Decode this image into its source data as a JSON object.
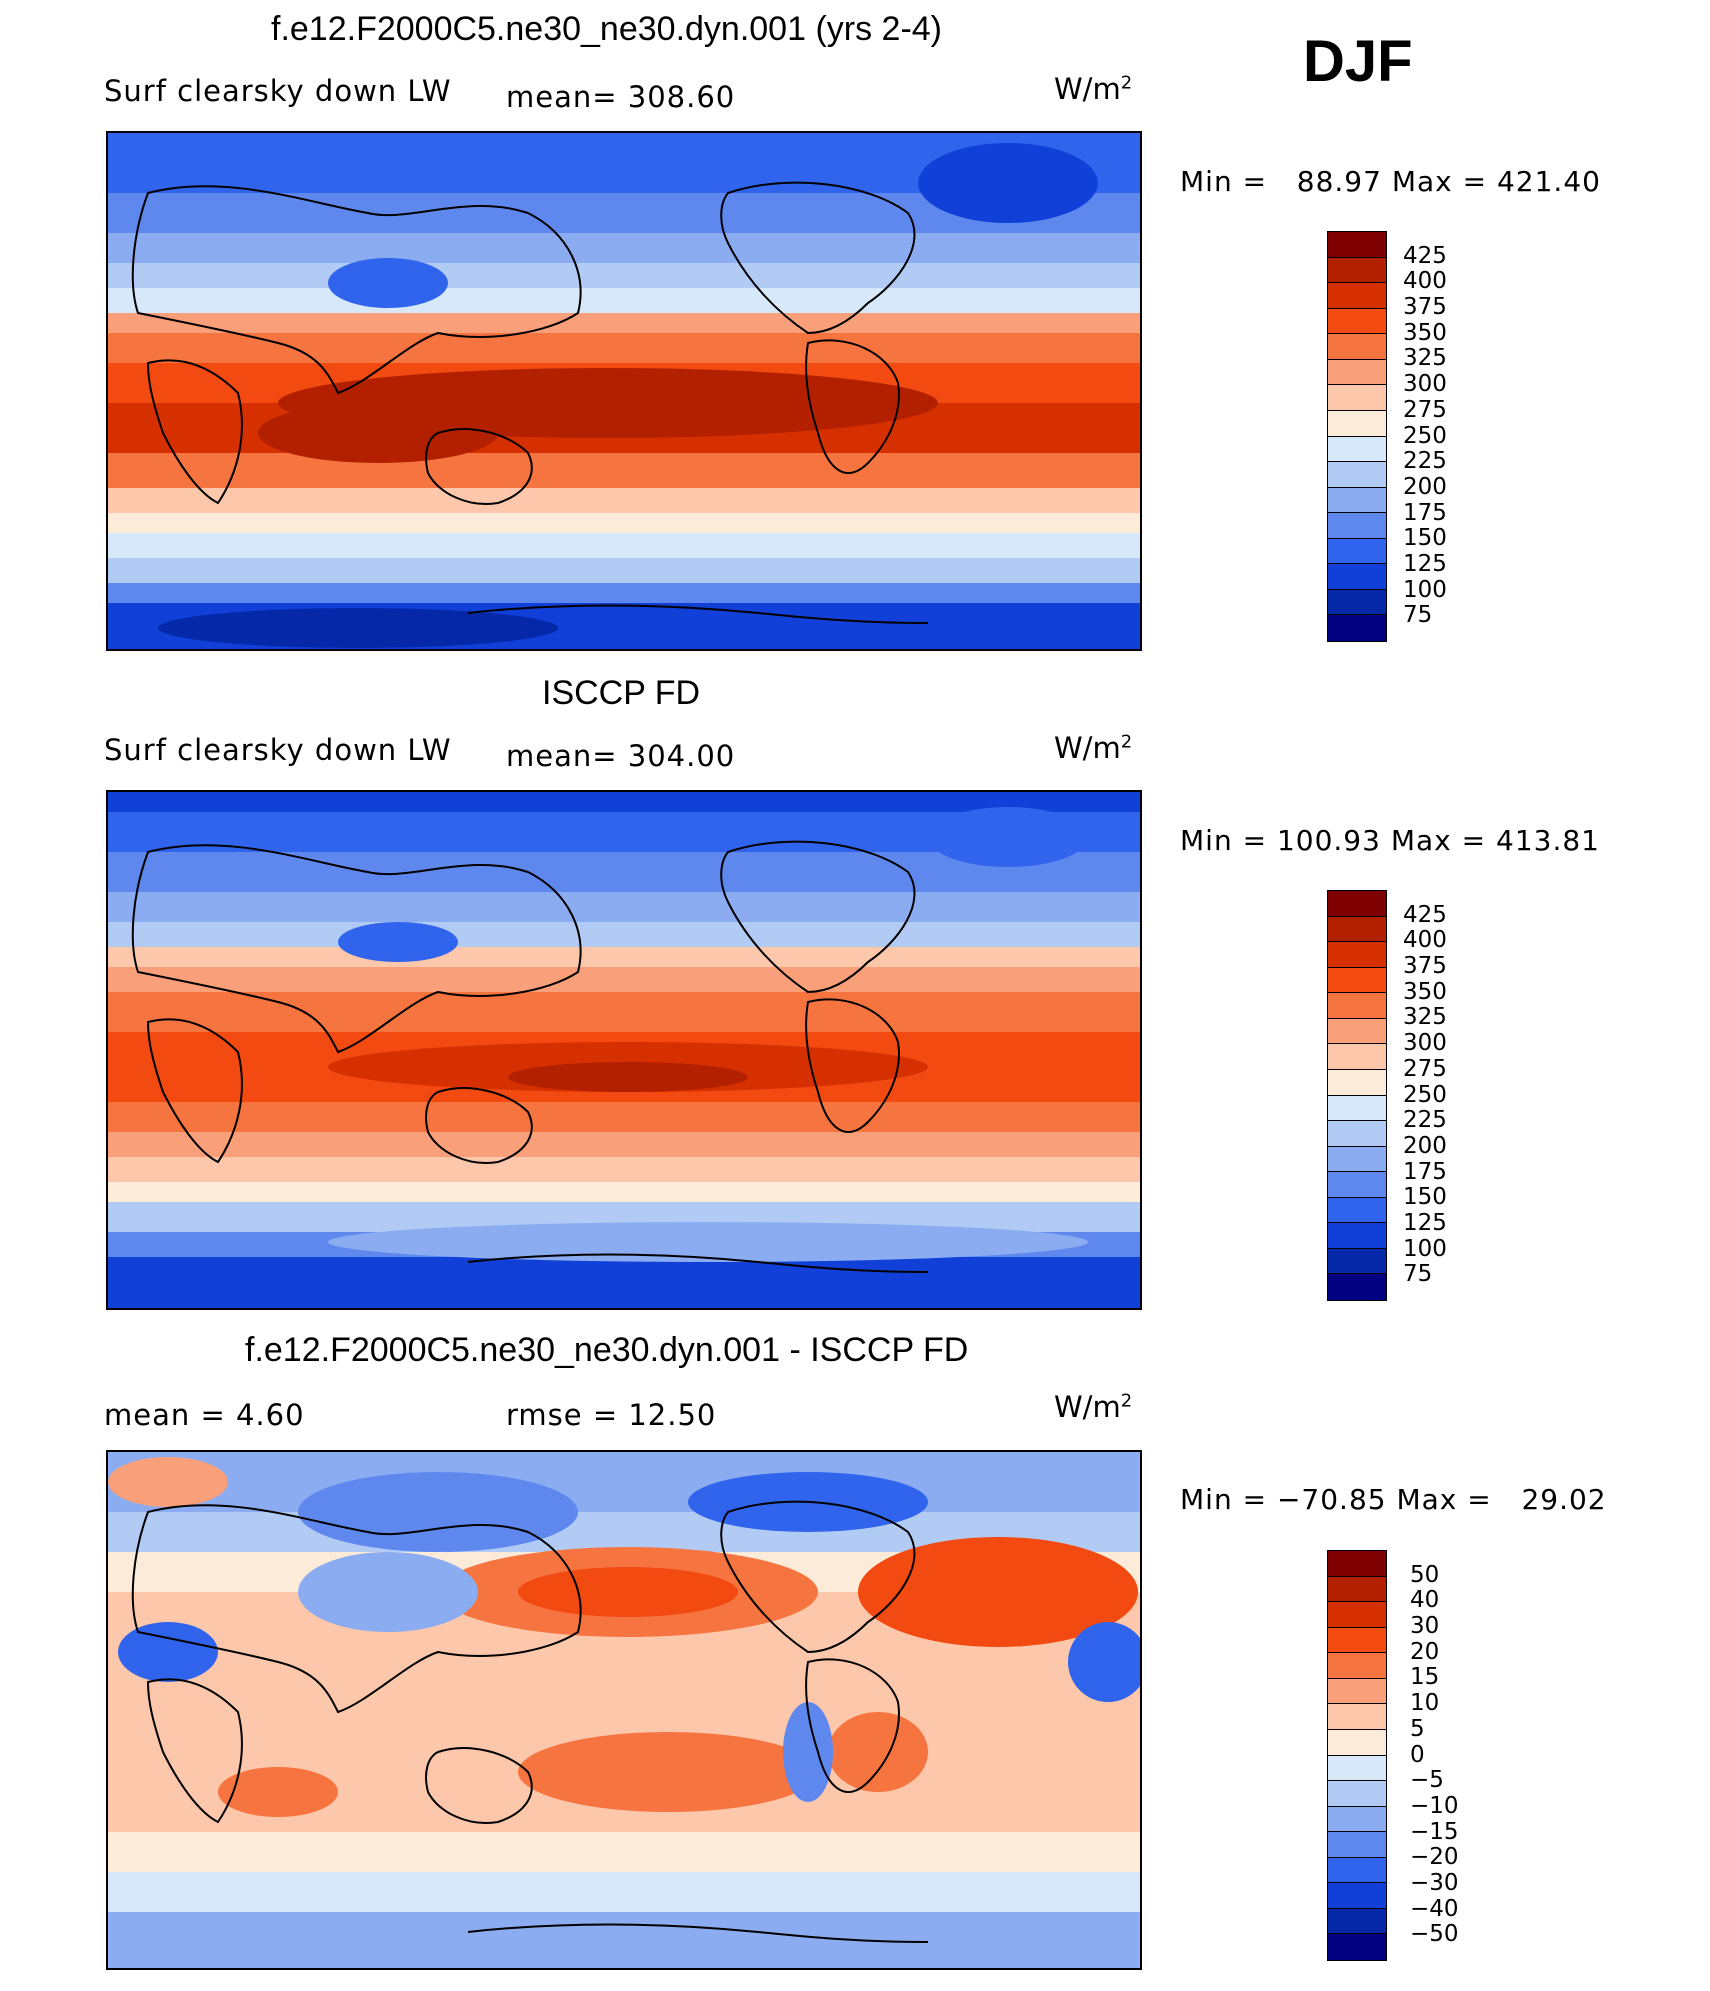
{
  "header": {
    "season": "DJF"
  },
  "panels": [
    {
      "id": "model",
      "title": "f.e12.F2000C5.ne30_ne30.dyn.001 (yrs 2-4)",
      "left_label": "Surf  clearsky  down  LW",
      "center_label": "mean=  308.60",
      "units": "W/m",
      "units_sup": "2",
      "min_label": "Min  =",
      "min_value": "88.97",
      "max_label": "Max  =",
      "max_value": "421.40",
      "colorbar_levels": [
        "425",
        "400",
        "375",
        "350",
        "325",
        "300",
        "275",
        "250",
        "225",
        "200",
        "175",
        "150",
        "125",
        "100",
        "75"
      ]
    },
    {
      "id": "obs",
      "title": "ISCCP FD",
      "left_label": "Surf  clearsky  down  LW",
      "center_label": "mean=  304.00",
      "units": "W/m",
      "units_sup": "2",
      "min_label": "Min  =",
      "min_value": "100.93",
      "max_label": "Max  =",
      "max_value": "413.81",
      "colorbar_levels": [
        "425",
        "400",
        "375",
        "350",
        "325",
        "300",
        "275",
        "250",
        "225",
        "200",
        "175",
        "150",
        "125",
        "100",
        "75"
      ]
    },
    {
      "id": "diff",
      "title": "f.e12.F2000C5.ne30_ne30.dyn.001 - ISCCP FD",
      "left_label": "mean  =      4.60",
      "center_label": "rmse  =     12.50",
      "units": "W/m",
      "units_sup": "2",
      "min_label": "Min  =",
      "min_value": "−70.85",
      "max_label": "Max  =",
      "max_value": "29.02",
      "colorbar_levels": [
        "50",
        "40",
        "30",
        "20",
        "15",
        "10",
        "5",
        "0",
        "−5",
        "−10",
        "−15",
        "−20",
        "−30",
        "−40",
        "−50"
      ]
    }
  ],
  "colors": {
    "absolute_scale": [
      "#7f0000",
      "#b22000",
      "#d73000",
      "#f24a10",
      "#f6743f",
      "#f9a07a",
      "#fcc7aa",
      "#fdebd9",
      "#d6e8fa",
      "#b2cbf4",
      "#8bacf0",
      "#5f88ee",
      "#3064ec",
      "#1040d8",
      "#0428a8",
      "#000080"
    ],
    "diff_scale": [
      "#7f0000",
      "#b22000",
      "#d73000",
      "#f24a10",
      "#f6743f",
      "#f9a07a",
      "#fcc7aa",
      "#fdebd9",
      "#d6e8fa",
      "#b2cbf4",
      "#8bacf0",
      "#5f88ee",
      "#3064ec",
      "#1040d8",
      "#0428a8",
      "#000080"
    ],
    "coastline": "#000000"
  }
}
